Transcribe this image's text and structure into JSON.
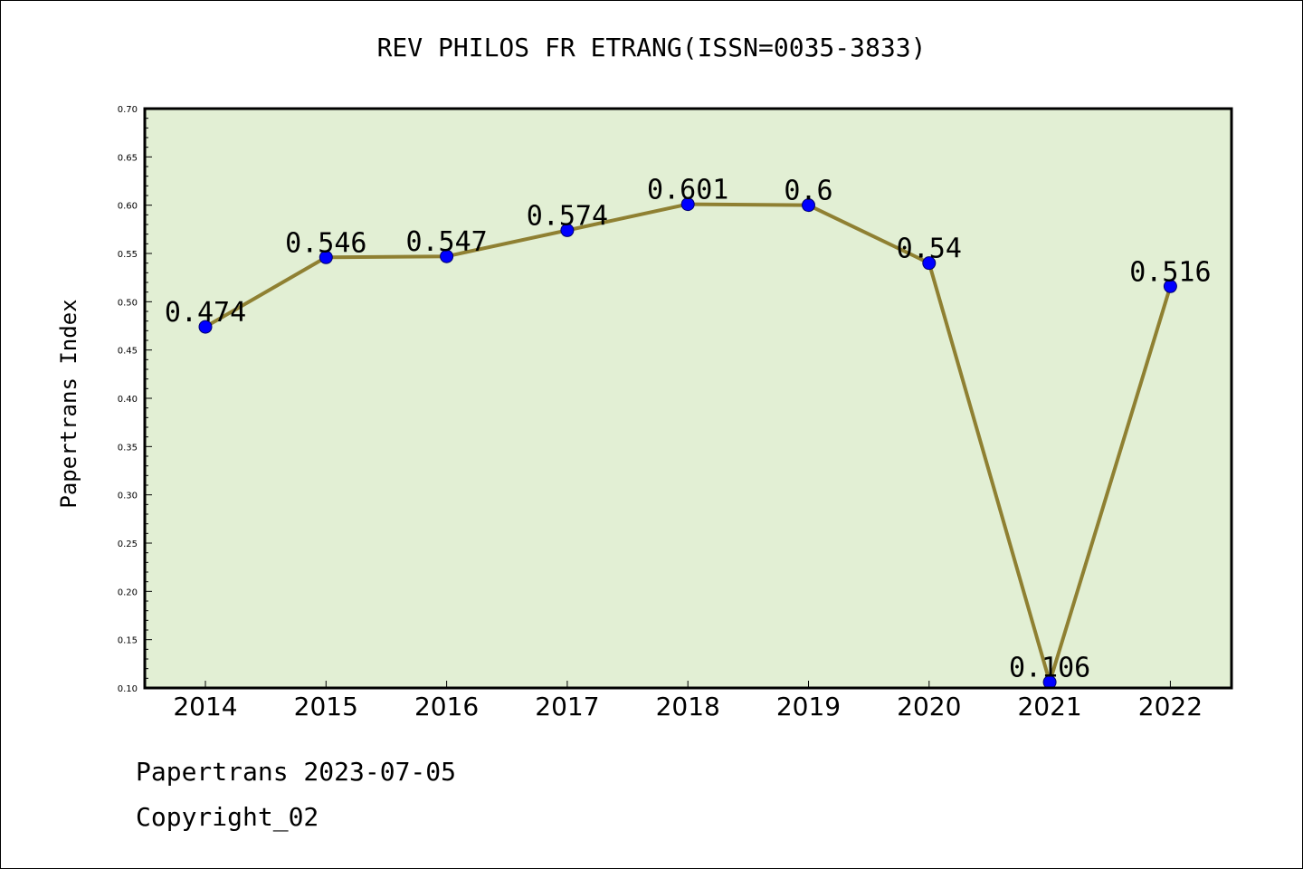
{
  "chart_data": {
    "type": "line",
    "title": "REV PHILOS FR ETRANG(ISSN=0035-3833)",
    "ylabel": "Papertrans Index",
    "xlabel": "",
    "x": [
      "2014",
      "2015",
      "2016",
      "2017",
      "2018",
      "2019",
      "2020",
      "2021",
      "2022"
    ],
    "values": [
      0.474,
      0.546,
      0.547,
      0.574,
      0.601,
      0.6,
      0.54,
      0.106,
      0.516
    ],
    "data_labels": [
      "0.474",
      "0.546",
      "0.547",
      "0.574",
      "0.601",
      "0.6",
      "0.54",
      "0.106",
      "0.516"
    ],
    "ylim": [
      0.1,
      0.7
    ],
    "yticks": [
      "0.10",
      "0.15",
      "0.20",
      "0.25",
      "0.30",
      "0.35",
      "0.40",
      "0.45",
      "0.50",
      "0.55",
      "0.60",
      "0.65",
      "0.70"
    ],
    "grid": false,
    "colors": {
      "plot_background": "#e2efd4",
      "line": "#8f8032",
      "marker": "#0000ff"
    }
  },
  "footer": {
    "line1": "Papertrans 2023-07-05",
    "line2": "Copyright_02"
  }
}
